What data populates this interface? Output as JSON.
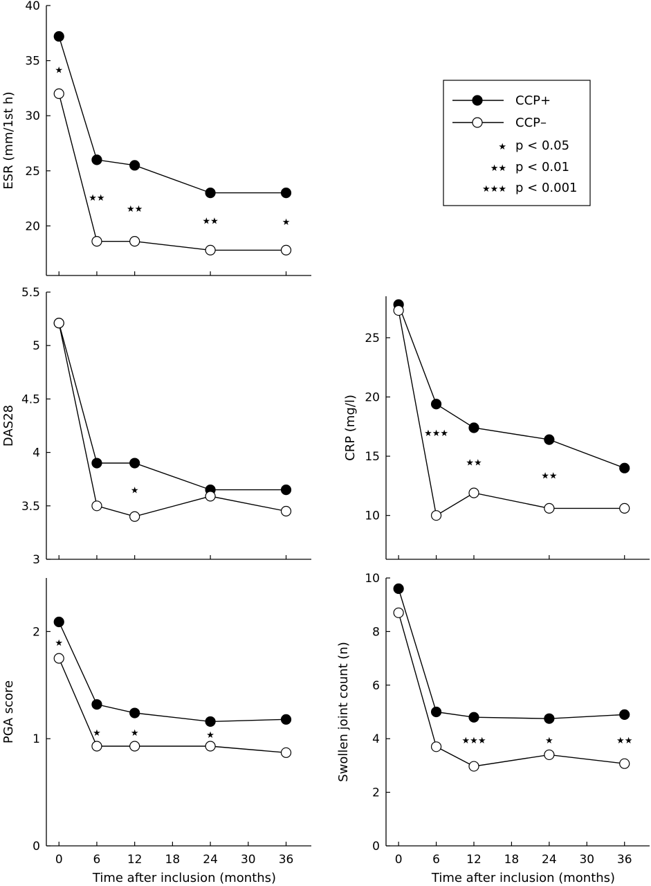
{
  "legend": {
    "entries": [
      {
        "marker": "filled-circle",
        "label": "CCP+"
      },
      {
        "marker": "open-circle",
        "label": "CCP–"
      },
      {
        "marker": "stars",
        "stars": "★",
        "label": "p < 0.05"
      },
      {
        "marker": "stars",
        "stars": "★★",
        "label": "p < 0.01"
      },
      {
        "marker": "stars",
        "stars": "★★★",
        "label": "p < 0.001"
      }
    ]
  },
  "chart_data": [
    {
      "id": "esr",
      "type": "line",
      "ylabel": "ESR (mm/1st h)",
      "xlabel": "",
      "x": [
        0,
        6,
        12,
        24,
        36
      ],
      "xlim": [
        -2,
        40
      ],
      "ylim": [
        15.5,
        40
      ],
      "yticks": [
        20,
        25,
        30,
        35,
        40
      ],
      "xticks": [],
      "series": [
        {
          "name": "CCP+",
          "marker": "filled",
          "values": [
            37.2,
            26.0,
            25.5,
            23.0,
            23.0
          ]
        },
        {
          "name": "CCP–",
          "marker": "open",
          "values": [
            32.0,
            18.6,
            18.6,
            17.8,
            17.8
          ]
        }
      ],
      "annotations": [
        {
          "x": 0,
          "y": 34.2,
          "text": "★"
        },
        {
          "x": 6,
          "y": 22.6,
          "text": "★★"
        },
        {
          "x": 12,
          "y": 21.6,
          "text": "★★"
        },
        {
          "x": 24,
          "y": 20.5,
          "text": "★★"
        },
        {
          "x": 36,
          "y": 20.4,
          "text": "★"
        }
      ]
    },
    {
      "id": "das28",
      "type": "line",
      "ylabel": "DAS28",
      "xlabel": "",
      "x": [
        0,
        6,
        12,
        24,
        36
      ],
      "xlim": [
        -2,
        40
      ],
      "ylim": [
        3,
        5.5
      ],
      "yticks": [
        3,
        3.5,
        4,
        4.5,
        5,
        5.5
      ],
      "xticks": [],
      "series": [
        {
          "name": "CCP+",
          "marker": "filled",
          "values": [
            5.21,
            3.9,
            3.9,
            3.65,
            3.65
          ]
        },
        {
          "name": "CCP–",
          "marker": "open",
          "values": [
            5.21,
            3.5,
            3.4,
            3.59,
            3.45
          ]
        }
      ],
      "annotations": [
        {
          "x": 12,
          "y": 3.65,
          "text": "★"
        }
      ]
    },
    {
      "id": "crp",
      "type": "line",
      "ylabel": "CRP (mg/l)",
      "xlabel": "",
      "x": [
        0,
        6,
        12,
        24,
        36
      ],
      "xlim": [
        -2,
        40
      ],
      "ylim": [
        6.3,
        28.5
      ],
      "yticks": [
        10,
        15,
        20,
        25
      ],
      "xticks": [],
      "series": [
        {
          "name": "CCP+",
          "marker": "filled",
          "values": [
            27.8,
            19.4,
            17.4,
            16.4,
            14.0
          ]
        },
        {
          "name": "CCP–",
          "marker": "open",
          "values": [
            27.3,
            10.0,
            11.9,
            10.6,
            10.6
          ]
        }
      ],
      "annotations": [
        {
          "x": 6,
          "y": 17.0,
          "text": "★★★"
        },
        {
          "x": 12,
          "y": 14.5,
          "text": "★★"
        },
        {
          "x": 24,
          "y": 13.4,
          "text": "★★"
        }
      ]
    },
    {
      "id": "pga",
      "type": "line",
      "ylabel": "PGA score",
      "xlabel": "Time after inclusion (months)",
      "x": [
        0,
        6,
        12,
        24,
        36
      ],
      "xlim": [
        -2,
        40
      ],
      "ylim": [
        0,
        2.5
      ],
      "yticks": [
        0,
        1,
        2
      ],
      "xticks": [
        0,
        6,
        12,
        18,
        24,
        30,
        36
      ],
      "series": [
        {
          "name": "CCP+",
          "marker": "filled",
          "values": [
            2.09,
            1.32,
            1.24,
            1.16,
            1.18
          ]
        },
        {
          "name": "CCP–",
          "marker": "open",
          "values": [
            1.75,
            0.93,
            0.93,
            0.93,
            0.87
          ]
        }
      ],
      "annotations": [
        {
          "x": 0,
          "y": 1.9,
          "text": "★"
        },
        {
          "x": 6,
          "y": 1.06,
          "text": "★"
        },
        {
          "x": 12,
          "y": 1.06,
          "text": "★"
        },
        {
          "x": 24,
          "y": 1.04,
          "text": "★"
        }
      ]
    },
    {
      "id": "sjc",
      "type": "line",
      "ylabel": "Swollen joint count (n)",
      "xlabel": "Time after inclusion (months)",
      "x": [
        0,
        6,
        12,
        24,
        36
      ],
      "xlim": [
        -2,
        40
      ],
      "ylim": [
        0,
        10
      ],
      "yticks": [
        0,
        2,
        4,
        6,
        8,
        10
      ],
      "xticks": [
        0,
        6,
        12,
        18,
        24,
        30,
        36
      ],
      "series": [
        {
          "name": "CCP+",
          "marker": "filled",
          "values": [
            9.6,
            5.0,
            4.8,
            4.75,
            4.9
          ]
        },
        {
          "name": "CCP–",
          "marker": "open",
          "values": [
            8.7,
            3.7,
            2.97,
            3.4,
            3.07
          ]
        }
      ],
      "annotations": [
        {
          "x": 12,
          "y": 3.95,
          "text": "★★★"
        },
        {
          "x": 24,
          "y": 3.95,
          "text": "★"
        },
        {
          "x": 36,
          "y": 3.95,
          "text": "★★"
        }
      ]
    }
  ]
}
